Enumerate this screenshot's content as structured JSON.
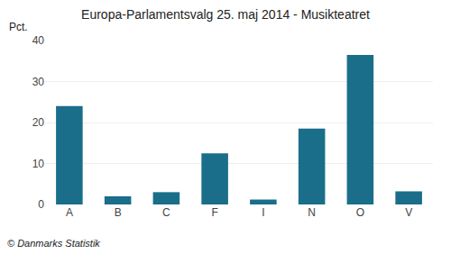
{
  "chart_data": {
    "type": "bar",
    "title": "Europa-Parlamentsvalg 25. maj 2014 - Musikteatret",
    "ylabel": "Pct.",
    "annotations": [
      "© Danmarks Statistik"
    ],
    "categories": [
      "A",
      "B",
      "C",
      "F",
      "I",
      "N",
      "O",
      "V"
    ],
    "values": [
      24.0,
      2.0,
      3.0,
      12.5,
      1.2,
      18.5,
      36.5,
      3.2
    ],
    "color": "#1a6e8a",
    "ylim": [
      0,
      40
    ],
    "yticks": [
      0,
      10,
      20,
      30,
      40
    ],
    "grid": true
  }
}
